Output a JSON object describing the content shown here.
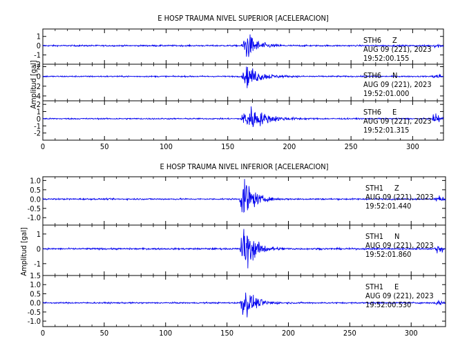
{
  "chart_data": [
    {
      "type": "line",
      "title": "E HOSP TRAUMA NIVEL SUPERIOR [ACELERACION]",
      "ylabel": "Amplitud [gal]",
      "xlim": [
        0,
        325
      ],
      "x_ticks": [
        0,
        50,
        100,
        150,
        200,
        250,
        300
      ],
      "line_color": "#0000ee",
      "panels": [
        {
          "station": "STH6",
          "component": "Z",
          "date": "AUG 09 (221), 2023",
          "time": "19:52:00.155",
          "ylim": [
            -2,
            1.8
          ],
          "y_ticks": [
            1,
            0,
            -1,
            -2
          ],
          "series": {
            "noise": 0.07,
            "event_start": 161,
            "event_peak": 165,
            "peak_amp": 1.6,
            "decay": 8,
            "end_bump": 0.15
          }
        },
        {
          "station": "STH6",
          "component": "N",
          "date": "AUG 09 (221), 2023",
          "time": "19:52:01.000",
          "ylim": [
            -5,
            2.5
          ],
          "y_ticks": [
            2,
            0,
            -2,
            -4
          ],
          "series": {
            "noise": 0.12,
            "event_start": 161,
            "event_peak": 166,
            "peak_amp": 2.2,
            "decay": 10,
            "end_bump": 0.4
          }
        },
        {
          "station": "STH6",
          "component": "E",
          "date": "AUG 09 (221), 2023",
          "time": "19:52:01.315",
          "ylim": [
            -3,
            2.5
          ],
          "y_ticks": [
            2,
            1,
            0,
            -1,
            -2
          ],
          "series": {
            "noise": 0.08,
            "event_start": 160,
            "event_peak": 167,
            "peak_amp": 1.9,
            "decay": 12,
            "end_bump": 0.6
          }
        }
      ]
    },
    {
      "type": "line",
      "title": "E HOSP TRAUMA NIVEL INFERIOR [ACELERACION]",
      "ylabel": "Amplitud [gal]",
      "xlim": [
        0,
        328
      ],
      "x_ticks": [
        0,
        50,
        100,
        150,
        200,
        250,
        300
      ],
      "line_color": "#0000ee",
      "panels": [
        {
          "station": "STH1",
          "component": "Z",
          "date": "AUG 09 (221), 2023",
          "time": "19:52:01.440",
          "ylim": [
            -1.4,
            1.2
          ],
          "y_ticks": [
            1.0,
            0.5,
            0.0,
            -0.5,
            -1.0
          ],
          "series": {
            "noise": 0.035,
            "event_start": 160,
            "event_peak": 164,
            "peak_amp": 1.25,
            "decay": 7,
            "end_bump": 0.12
          }
        },
        {
          "station": "STH1",
          "component": "N",
          "date": "AUG 09 (221), 2023",
          "time": "19:52:01.860",
          "ylim": [
            -1.8,
            1.6
          ],
          "y_ticks": [
            1,
            0,
            -1
          ],
          "series": {
            "noise": 0.05,
            "event_start": 160,
            "event_peak": 164,
            "peak_amp": 1.6,
            "decay": 8,
            "end_bump": 0.22
          }
        },
        {
          "station": "STH1",
          "component": "E",
          "date": "AUG 09 (221), 2023",
          "time": "19:52:00.530",
          "ylim": [
            -1.3,
            1.5
          ],
          "y_ticks": [
            1.5,
            1.0,
            0.5,
            0.0,
            -0.5,
            -1.0
          ],
          "series": {
            "noise": 0.035,
            "event_start": 160,
            "event_peak": 164,
            "peak_amp": 0.85,
            "decay": 8,
            "end_bump": 0.1
          }
        }
      ]
    }
  ]
}
